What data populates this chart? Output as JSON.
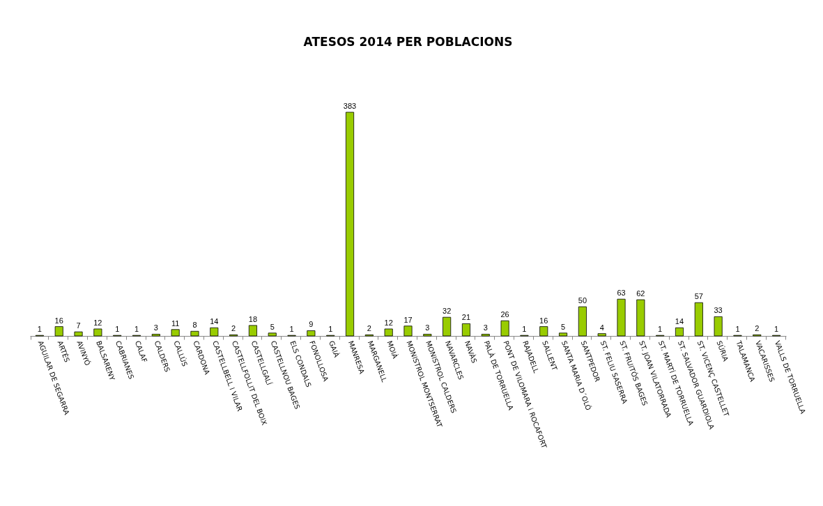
{
  "chart_data": {
    "type": "bar",
    "title": "ATESOS 2014 PER POBLACIONS",
    "categories": [
      "AGUILAR DE SEGARRA",
      "ARTÉS",
      "AVINYÓ",
      "BALSARENY",
      "CABRIANES",
      "CALAF",
      "CALDERS",
      "CALLÚS",
      "CARDONA",
      "CASTELLBELL I VILAR",
      "CASTELLFOLLIT DEL BOIX",
      "CASTELLGALÍ",
      "CASTELLNOU BAGES",
      "ELS CONDALS",
      "FONOLLOSA",
      "GAIÀ",
      "MANRESA",
      "MARGANELL",
      "MOIÀ",
      "MONISTROL MONTSERRAT",
      "MONISTROL CALDERS",
      "NAVARCLES",
      "NAVÀS",
      "PALÀ DE TORRUELLA",
      "PONT DE VILOMARA i ROCAFORT",
      "RAJADELL",
      "SALLENT",
      "SANTA MARIA D´OLÓ",
      "SANTPEDOR",
      "ST. FELIU SASERRA",
      "ST. FRUITÓS BAGES",
      "ST. JOAN VILATORRADA",
      "ST. MARTÍ DE TORRUELLA",
      "ST. SALVADOR GUARDIOLA",
      "ST. VICENÇ CASTELLET",
      "SÚRIA",
      "TALAMANCA",
      "VACARISSES",
      "VALLS DE TORRUELLA"
    ],
    "values": [
      1,
      16,
      7,
      12,
      1,
      1,
      3,
      11,
      8,
      14,
      2,
      18,
      5,
      1,
      9,
      1,
      383,
      2,
      12,
      17,
      3,
      32,
      21,
      3,
      26,
      1,
      16,
      5,
      50,
      4,
      63,
      62,
      1,
      14,
      57,
      33,
      1,
      2,
      1
    ],
    "color": "#99cc00",
    "data_labels": true,
    "grid": false
  }
}
